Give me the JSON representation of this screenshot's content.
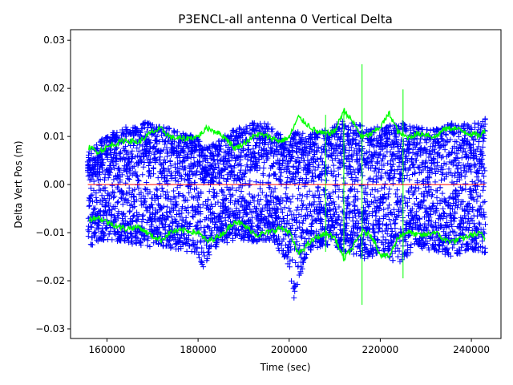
{
  "chart_data": {
    "type": "scatter",
    "title": "P3ENCL-all antenna 0 Vertical Delta",
    "xlabel": "Time (sec)",
    "ylabel": "Delta Vert Pos (m)",
    "xlim": [
      152000,
      246500
    ],
    "ylim": [
      -0.032,
      0.0322
    ],
    "xticks": [
      160000,
      180000,
      200000,
      220000,
      240000
    ],
    "xtick_labels": [
      "160000",
      "180000",
      "200000",
      "220000",
      "240000"
    ],
    "yticks": [
      -0.03,
      -0.02,
      -0.01,
      0.0,
      0.01,
      0.02,
      0.03
    ],
    "ytick_labels": [
      "−0.03",
      "−0.02",
      "−0.01",
      "0.00",
      "0.01",
      "0.02",
      "0.03"
    ],
    "grid": false,
    "legend": "none",
    "x_range": [
      155800,
      243100
    ],
    "series": [
      {
        "style": "plus-markers",
        "color": "#0000ff",
        "envelope_x": [
          156000,
          160000,
          164000,
          168000,
          172000,
          176000,
          180000,
          181000,
          184000,
          188000,
          192000,
          196000,
          200000,
          201000,
          204000,
          208000,
          212000,
          216000,
          220000,
          224000,
          228000,
          232000,
          236000,
          240000,
          243000
        ],
        "envelope_upper": [
          0.007,
          0.0105,
          0.012,
          0.013,
          0.0125,
          0.011,
          0.01,
          0.0075,
          0.009,
          0.0115,
          0.013,
          0.0125,
          0.0085,
          0.0115,
          0.0105,
          0.0115,
          0.0135,
          0.0125,
          0.012,
          0.013,
          0.012,
          0.0115,
          0.013,
          0.0125,
          0.014
        ],
        "envelope_lower": [
          -0.013,
          -0.0115,
          -0.012,
          -0.013,
          -0.013,
          -0.0135,
          -0.015,
          -0.0175,
          -0.013,
          -0.0115,
          -0.012,
          -0.0115,
          -0.017,
          -0.024,
          -0.014,
          -0.0125,
          -0.014,
          -0.0155,
          -0.0145,
          -0.0165,
          -0.013,
          -0.014,
          -0.015,
          -0.0135,
          -0.0145
        ]
      },
      {
        "style": "line",
        "color": "#00ff00",
        "x": [
          156000,
          158000,
          161000,
          164000,
          167000,
          170000,
          172000,
          174000,
          177000,
          180000,
          182000,
          184000,
          186000,
          188000,
          190000,
          193000,
          196000,
          198000,
          200000,
          202000,
          204000,
          206000,
          208000,
          210000,
          212000,
          214000,
          216000,
          218000,
          220000,
          222000,
          224000,
          226000,
          228000,
          230000,
          232000,
          234000,
          236000,
          238000,
          240000,
          242000,
          243000
        ],
        "upper": [
          0.0078,
          0.0068,
          0.0082,
          0.0092,
          0.0088,
          0.011,
          0.0115,
          0.0098,
          0.0095,
          0.01,
          0.0118,
          0.011,
          0.0098,
          0.0075,
          0.0085,
          0.0105,
          0.0098,
          0.009,
          0.0098,
          0.014,
          0.0125,
          0.011,
          0.0105,
          0.011,
          0.0155,
          0.013,
          0.0098,
          0.0105,
          0.012,
          0.0148,
          0.0108,
          0.0098,
          0.0105,
          0.0105,
          0.0098,
          0.0115,
          0.0118,
          0.0112,
          0.0105,
          0.0102,
          0.0112
        ],
        "lower": [
          -0.0072,
          -0.0068,
          -0.0082,
          -0.0092,
          -0.0088,
          -0.0108,
          -0.0115,
          -0.0098,
          -0.0095,
          -0.01,
          -0.0118,
          -0.011,
          -0.0098,
          -0.0075,
          -0.0085,
          -0.0105,
          -0.0098,
          -0.009,
          -0.0098,
          -0.0145,
          -0.0125,
          -0.011,
          -0.0102,
          -0.011,
          -0.0155,
          -0.013,
          -0.0098,
          -0.0105,
          -0.0145,
          -0.015,
          -0.0108,
          -0.0098,
          -0.0105,
          -0.0105,
          -0.0098,
          -0.0115,
          -0.0118,
          -0.0112,
          -0.0105,
          -0.0102,
          -0.0112
        ]
      },
      {
        "style": "spikes",
        "color": "#00ff00",
        "x": [
          216000,
          225000,
          208000,
          212000
        ],
        "top": [
          0.025,
          0.0198,
          0.0145,
          0.0155
        ],
        "bottom": [
          -0.025,
          -0.0195,
          -0.014,
          -0.016
        ]
      },
      {
        "style": "line",
        "color": "#ff0000",
        "x": [
          155800,
          243100
        ],
        "values": [
          0.0,
          0.0
        ]
      }
    ]
  }
}
